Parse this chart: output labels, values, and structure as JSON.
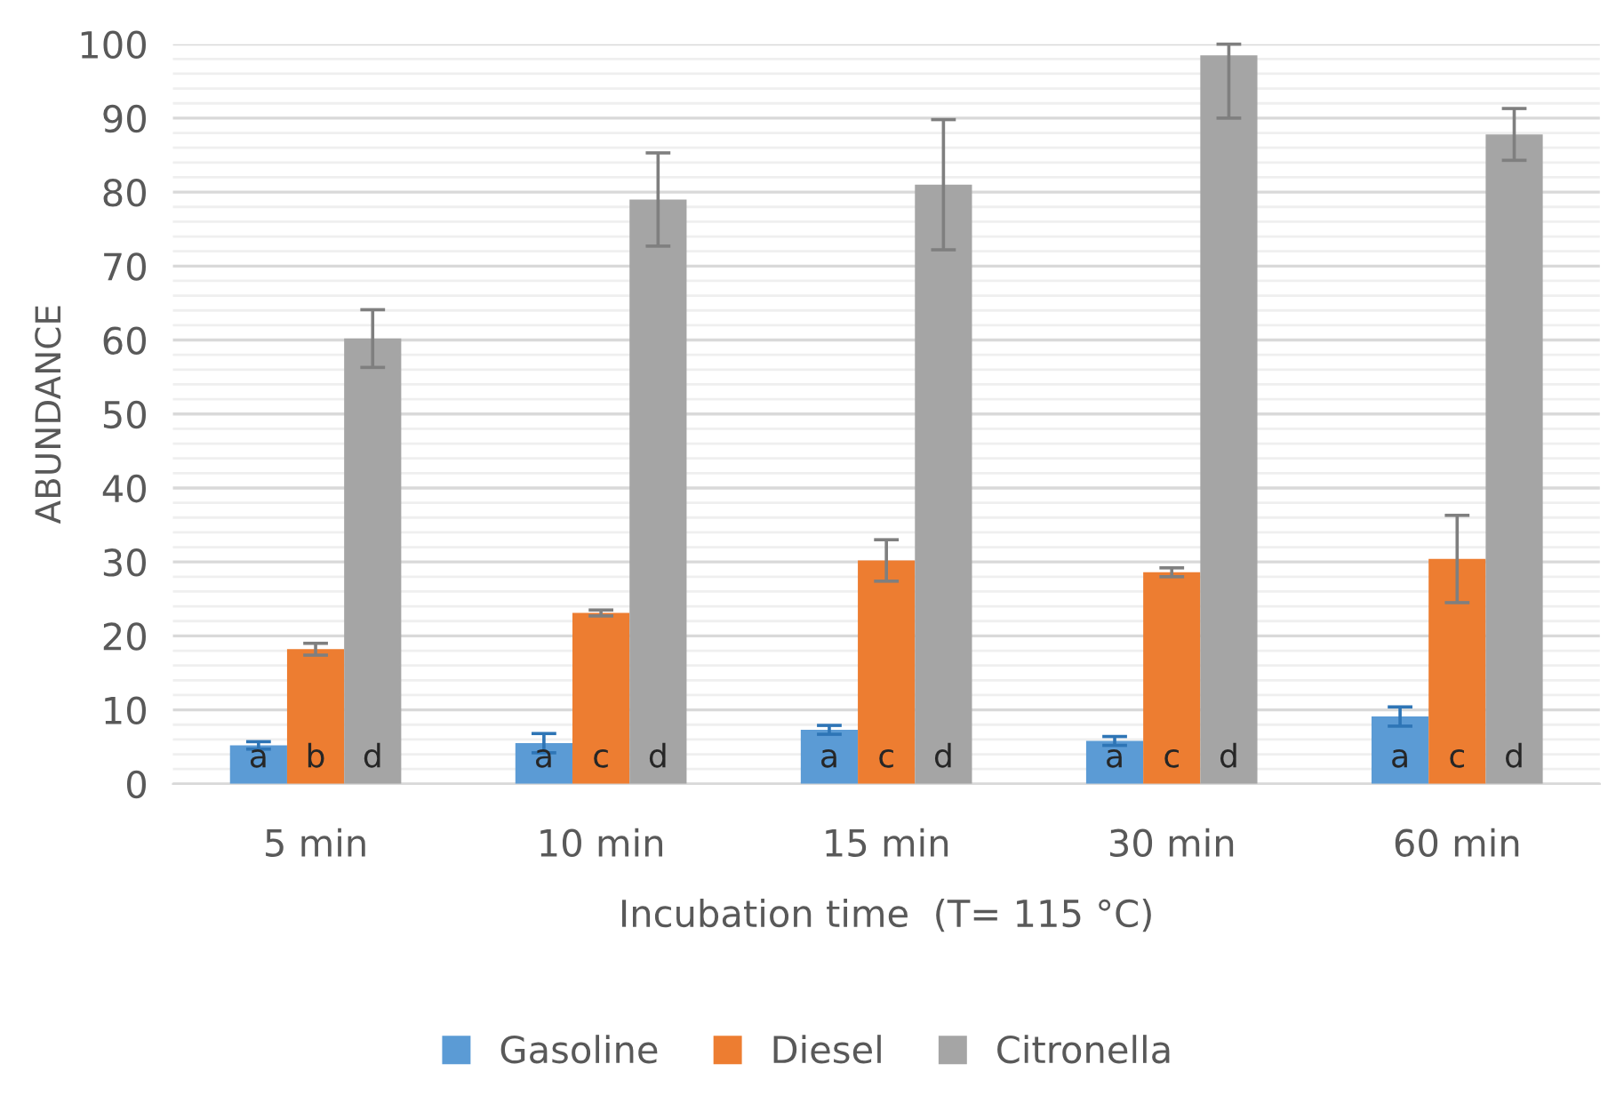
{
  "chart_data": {
    "type": "bar",
    "xlabel": "Incubation time  (T= 115 °C)",
    "ylabel": "ABUNDANCE",
    "categories": [
      "5 min",
      "10 min",
      "15 min",
      "30 min",
      "60 min"
    ],
    "series": [
      {
        "name": "Gasoline",
        "color": "#5b9bd5",
        "values": [
          5.2,
          5.5,
          7.3,
          5.8,
          9.1
        ],
        "errors": [
          0.5,
          1.3,
          0.6,
          0.6,
          1.3
        ],
        "value_labels": [
          "a",
          "a",
          "a",
          "a",
          "a"
        ]
      },
      {
        "name": "Diesel",
        "color": "#ed7d31",
        "values": [
          18.2,
          23.1,
          30.2,
          28.6,
          30.4
        ],
        "errors": [
          0.8,
          0.4,
          2.8,
          0.6,
          5.9
        ],
        "value_labels": [
          "b",
          "c",
          "c",
          "c",
          "c"
        ]
      },
      {
        "name": "Citronella",
        "color": "#a5a5a5",
        "values": [
          60.2,
          79.0,
          81.0,
          98.5,
          87.8
        ],
        "errors": [
          3.9,
          6.3,
          8.8,
          [
            90.0,
            100
          ],
          3.5
        ],
        "value_labels": [
          "d",
          "d",
          "d",
          "d",
          "d"
        ]
      }
    ],
    "ylim": [
      0,
      100
    ],
    "yticks": [
      0,
      10,
      20,
      30,
      40,
      50,
      60,
      70,
      80,
      90,
      100
    ],
    "grid": "y",
    "legend": "bottom"
  }
}
